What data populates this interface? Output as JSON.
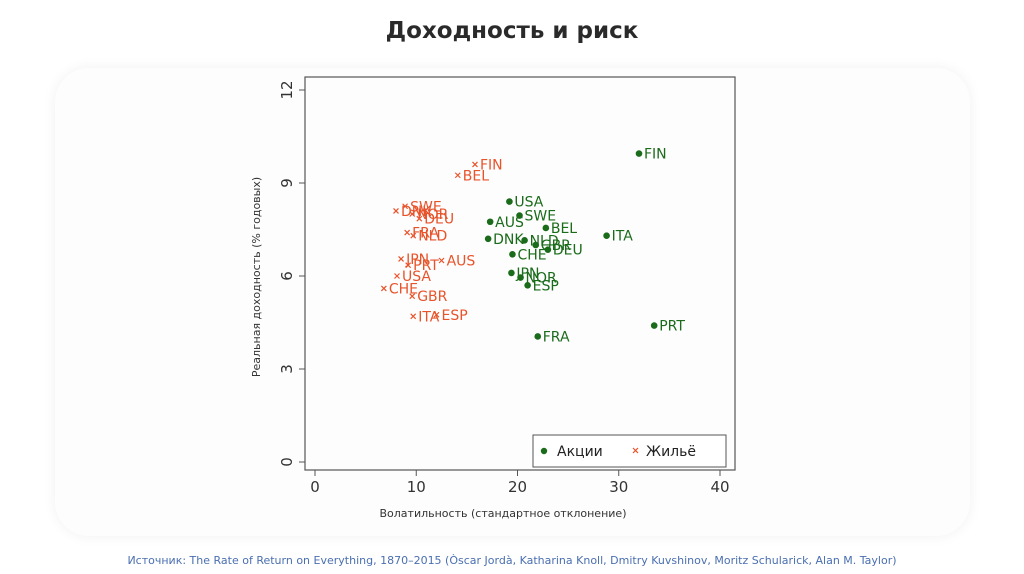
{
  "slide_title": "Доходность и риск",
  "source": "Источник: The Rate of Return on Everything, 1870–2015 (Òscar Jordà, Katharina Knoll, Dmitry Kuvshinov, Moritz Schularick, Alan M. Taylor)",
  "colors": {
    "equity": "#1a6b1a",
    "housing": "#e8532a",
    "axis": "#555555"
  },
  "chart_data": {
    "type": "scatter",
    "xlabel": "Волатильность (стандартное отклонение)",
    "ylabel": "Реальная доходность (% годовых)",
    "xlim": [
      0,
      40
    ],
    "ylim": [
      0,
      12
    ],
    "xticks": [
      "0",
      "10",
      "20",
      "30",
      "40"
    ],
    "yticks": [
      "0",
      "3",
      "6",
      "9",
      "12"
    ],
    "legend_position": "bottom-right",
    "series": [
      {
        "name": "Акции",
        "marker": "dot",
        "points": [
          {
            "label": "FIN",
            "x": 32.0,
            "y": 9.95
          },
          {
            "label": "USA",
            "x": 19.2,
            "y": 8.4
          },
          {
            "label": "SWE",
            "x": 20.2,
            "y": 7.95
          },
          {
            "label": "AUS",
            "x": 17.3,
            "y": 7.75
          },
          {
            "label": "BEL",
            "x": 22.8,
            "y": 7.55
          },
          {
            "label": "ITA",
            "x": 28.8,
            "y": 7.3
          },
          {
            "label": "DNK",
            "x": 17.1,
            "y": 7.2
          },
          {
            "label": "NLD",
            "x": 20.7,
            "y": 7.15
          },
          {
            "label": "GBR",
            "x": 21.8,
            "y": 7.0
          },
          {
            "label": "DEU",
            "x": 23.0,
            "y": 6.85
          },
          {
            "label": "CHE",
            "x": 19.5,
            "y": 6.7
          },
          {
            "label": "JPN",
            "x": 19.4,
            "y": 6.1
          },
          {
            "label": "NOR",
            "x": 20.3,
            "y": 5.95
          },
          {
            "label": "ESP",
            "x": 21.0,
            "y": 5.7
          },
          {
            "label": "FRA",
            "x": 22.0,
            "y": 4.05
          },
          {
            "label": "PRT",
            "x": 33.5,
            "y": 4.4
          }
        ]
      },
      {
        "name": "Жильё",
        "marker": "x",
        "points": [
          {
            "label": "FIN",
            "x": 15.8,
            "y": 9.6
          },
          {
            "label": "BEL",
            "x": 14.1,
            "y": 9.25
          },
          {
            "label": "SWE",
            "x": 8.9,
            "y": 8.25
          },
          {
            "label": "DNK",
            "x": 8.0,
            "y": 8.1
          },
          {
            "label": "NOR",
            "x": 9.6,
            "y": 8.0
          },
          {
            "label": "DEU",
            "x": 10.3,
            "y": 7.85
          },
          {
            "label": "FRA",
            "x": 9.1,
            "y": 7.4
          },
          {
            "label": "NLD",
            "x": 9.7,
            "y": 7.3
          },
          {
            "label": "JPN",
            "x": 8.5,
            "y": 6.55
          },
          {
            "label": "AUS",
            "x": 12.5,
            "y": 6.5
          },
          {
            "label": "PRT",
            "x": 9.2,
            "y": 6.35
          },
          {
            "label": "USA",
            "x": 8.1,
            "y": 6.0
          },
          {
            "label": "CHE",
            "x": 6.8,
            "y": 5.6
          },
          {
            "label": "GBR",
            "x": 9.6,
            "y": 5.35
          },
          {
            "label": "ITA",
            "x": 9.7,
            "y": 4.7
          },
          {
            "label": "ESP",
            "x": 12.0,
            "y": 4.75
          }
        ]
      }
    ]
  }
}
